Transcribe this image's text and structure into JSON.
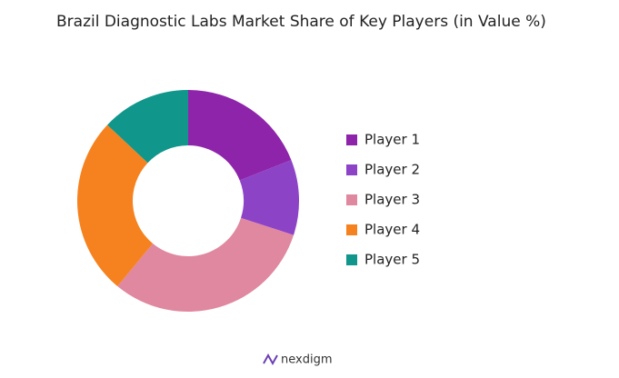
{
  "chart_data": {
    "type": "pie",
    "title": "Brazil Diagnostic Labs Market Share of Key Players (in Value %)",
    "categories": [
      "Player 1",
      "Player 2",
      "Player 3",
      "Player 4",
      "Player 5"
    ],
    "values": [
      19,
      11,
      31,
      26,
      13
    ],
    "colors": [
      "#8e24aa",
      "#8d43c6",
      "#df889f",
      "#f5821f",
      "#10968a"
    ],
    "legend": "right"
  },
  "footer": {
    "brand": "nexdigm"
  }
}
